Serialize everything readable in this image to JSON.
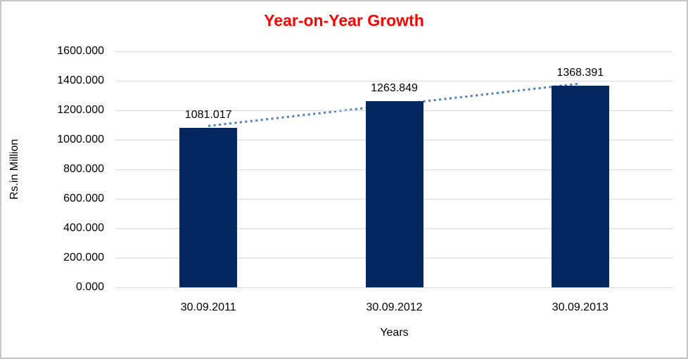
{
  "chart_data": {
    "type": "bar",
    "title": "Year-on-Year Growth",
    "title_color": "#ff0000",
    "xlabel": "Years",
    "ylabel": "Rs.in Million",
    "categories": [
      "30.09.2011",
      "30.09.2012",
      "30.09.2013"
    ],
    "values": [
      1081.017,
      1263.849,
      1368.391
    ],
    "value_labels": [
      "1081.017",
      "1263.849",
      "1368.391"
    ],
    "ylim": [
      0,
      1600
    ],
    "ytick_step": 200,
    "ytick_labels": [
      "0.000",
      "200.000",
      "400.000",
      "600.000",
      "800.000",
      "1000.000",
      "1200.000",
      "1400.000",
      "1600.000"
    ],
    "bar_color": "#04265e",
    "gridline_color": "#d9d9d9",
    "grid": true,
    "legend": "none",
    "trendline": {
      "type": "linear",
      "style": "dotted",
      "color": "#4a7ebb"
    }
  }
}
